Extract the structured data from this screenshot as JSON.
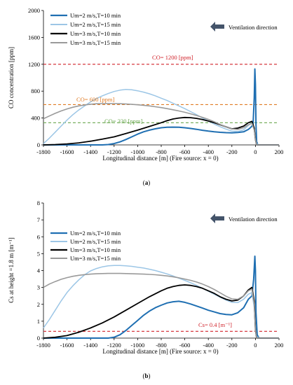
{
  "chart_data": [
    {
      "type": "line",
      "panel_label_open": "(",
      "panel_label_letter": "a",
      "panel_label_close": ")",
      "xlabel": "Longitudinal distance [m] (Fire source: x = 0)",
      "ylabel": "CO concentration [ppm]",
      "xlim": [
        -1800,
        200
      ],
      "ylim": [
        0,
        2000
      ],
      "xticks": [
        -1800,
        -1600,
        -1400,
        -1200,
        -1000,
        -800,
        -600,
        -400,
        -200,
        0,
        200
      ],
      "yticks": [
        0,
        400,
        800,
        1200,
        1600,
        2000
      ],
      "ventilation_label": "Ventilation direction",
      "legend_position": "top-left",
      "series": [
        {
          "name": "Um=2 m/s,T=10 min",
          "color": "#1f6fb2",
          "width": 2,
          "x": [
            -1800,
            -1300,
            -1250,
            -1200,
            -1150,
            -1100,
            -1050,
            -1000,
            -950,
            -900,
            -850,
            -800,
            -750,
            -700,
            -650,
            -600,
            -550,
            -500,
            -450,
            -400,
            -350,
            -300,
            -250,
            -200,
            -150,
            -100,
            -60,
            -40,
            -20,
            -10,
            -5,
            0,
            5,
            10,
            20,
            50,
            200
          ],
          "y": [
            0,
            0,
            5,
            20,
            45,
            80,
            120,
            160,
            195,
            220,
            240,
            255,
            262,
            265,
            262,
            255,
            245,
            232,
            218,
            205,
            195,
            188,
            182,
            180,
            185,
            195,
            230,
            260,
            300,
            700,
            1130,
            900,
            300,
            50,
            0,
            0,
            0
          ]
        },
        {
          "name": "Um=2 m/s,T=15 min",
          "color": "#9cc6e6",
          "width": 1.5,
          "x": [
            -1800,
            -1750,
            -1700,
            -1650,
            -1600,
            -1550,
            -1500,
            -1450,
            -1400,
            -1350,
            -1300,
            -1250,
            -1200,
            -1150,
            -1100,
            -1050,
            -1000,
            -950,
            -900,
            -850,
            -800,
            -750,
            -700,
            -650,
            -600,
            -550,
            -500,
            -450,
            -400,
            -350,
            -300,
            -250,
            -200,
            -150,
            -100,
            -60,
            -30,
            -10,
            0,
            10,
            30,
            200
          ],
          "y": [
            20,
            100,
            190,
            280,
            370,
            450,
            520,
            580,
            640,
            690,
            730,
            765,
            795,
            815,
            825,
            820,
            805,
            785,
            760,
            730,
            695,
            660,
            620,
            580,
            540,
            495,
            450,
            400,
            355,
            310,
            270,
            235,
            205,
            200,
            225,
            290,
            330,
            240,
            100,
            20,
            0,
            0
          ]
        },
        {
          "name": "Um=3 m/s,T=10 min",
          "color": "#000000",
          "width": 1.8,
          "x": [
            -1800,
            -1700,
            -1600,
            -1500,
            -1400,
            -1300,
            -1200,
            -1100,
            -1000,
            -900,
            -800,
            -750,
            -700,
            -650,
            -600,
            -550,
            -500,
            -450,
            -400,
            -350,
            -300,
            -250,
            -200,
            -150,
            -100,
            -60,
            -30,
            -10,
            0,
            10,
            200
          ],
          "y": [
            0,
            5,
            15,
            30,
            55,
            85,
            120,
            170,
            220,
            275,
            330,
            360,
            385,
            400,
            408,
            405,
            395,
            378,
            355,
            330,
            300,
            270,
            240,
            250,
            280,
            330,
            350,
            250,
            80,
            0,
            0
          ]
        },
        {
          "name": "Um=3 m/s,T=15 min",
          "color": "#9a9a9a",
          "width": 1.6,
          "x": [
            -1800,
            -1750,
            -1700,
            -1650,
            -1600,
            -1550,
            -1500,
            -1450,
            -1400,
            -1350,
            -1300,
            -1250,
            -1200,
            -1150,
            -1100,
            -1050,
            -1000,
            -950,
            -900,
            -850,
            -800,
            -750,
            -700,
            -650,
            -600,
            -550,
            -500,
            -450,
            -400,
            -350,
            -300,
            -250,
            -200,
            -150,
            -100,
            -60,
            -30,
            -10,
            0,
            10,
            200
          ],
          "y": [
            390,
            430,
            470,
            505,
            535,
            560,
            580,
            595,
            605,
            612,
            615,
            616,
            615,
            612,
            608,
            603,
            597,
            590,
            580,
            568,
            555,
            540,
            523,
            505,
            485,
            462,
            438,
            410,
            380,
            345,
            305,
            270,
            240,
            230,
            255,
            300,
            320,
            220,
            80,
            0,
            0
          ]
        }
      ],
      "reference_lines": [
        {
          "y": 1200,
          "label": "CO= 1200 [ppm]",
          "color": "#d0222a"
        },
        {
          "y": 600,
          "label": "CO= 600 [ppm]",
          "color": "#e07b24"
        },
        {
          "y": 330,
          "label": "CO= 330 [ppm]",
          "color": "#6aa84f"
        }
      ]
    },
    {
      "type": "line",
      "panel_label_open": "(",
      "panel_label_letter": "b",
      "panel_label_close": ")",
      "xlabel": "Longitudinal distance [m] (Fire source: x = 0)",
      "ylabel": "Cs at height =1.8 m [m⁻¹]",
      "xlim": [
        -1800,
        200
      ],
      "ylim": [
        0,
        8
      ],
      "xticks": [
        -1800,
        -1600,
        -1400,
        -1200,
        -1000,
        -800,
        -600,
        -400,
        -200,
        0,
        200
      ],
      "yticks": [
        0,
        1,
        2,
        3,
        4,
        5,
        6,
        7,
        8
      ],
      "ventilation_label": "Ventilation direction",
      "legend_position": "top-left",
      "series": [
        {
          "name": "Um=2 m/s,T=10 min",
          "color": "#1f6fb2",
          "width": 2,
          "x": [
            -1800,
            -1250,
            -1200,
            -1150,
            -1100,
            -1050,
            -1000,
            -950,
            -900,
            -850,
            -800,
            -750,
            -700,
            -650,
            -600,
            -550,
            -500,
            -450,
            -400,
            -350,
            -300,
            -250,
            -200,
            -150,
            -100,
            -60,
            -30,
            -15,
            -5,
            0,
            5,
            15,
            30,
            200
          ],
          "y": [
            0,
            0,
            0.05,
            0.2,
            0.45,
            0.75,
            1.05,
            1.35,
            1.6,
            1.8,
            1.95,
            2.08,
            2.15,
            2.18,
            2.12,
            2.02,
            1.9,
            1.78,
            1.65,
            1.55,
            1.45,
            1.4,
            1.38,
            1.5,
            1.8,
            2.3,
            2.5,
            3.5,
            4.85,
            4.0,
            1.5,
            0.2,
            0,
            0
          ]
        },
        {
          "name": "Um=2 m/s,T=15 min",
          "color": "#9cc6e6",
          "width": 1.5,
          "x": [
            -1800,
            -1750,
            -1700,
            -1650,
            -1600,
            -1550,
            -1500,
            -1450,
            -1400,
            -1350,
            -1300,
            -1250,
            -1200,
            -1150,
            -1100,
            -1050,
            -1000,
            -950,
            -900,
            -850,
            -800,
            -750,
            -700,
            -650,
            -600,
            -550,
            -500,
            -450,
            -400,
            -350,
            -300,
            -250,
            -200,
            -150,
            -100,
            -60,
            -30,
            -10,
            0,
            10,
            30,
            200
          ],
          "y": [
            0.6,
            1.1,
            1.65,
            2.2,
            2.7,
            3.1,
            3.45,
            3.75,
            3.98,
            4.12,
            4.22,
            4.28,
            4.3,
            4.3,
            4.28,
            4.25,
            4.2,
            4.15,
            4.08,
            4.0,
            3.9,
            3.8,
            3.68,
            3.55,
            3.42,
            3.28,
            3.12,
            2.95,
            2.78,
            2.6,
            2.42,
            2.25,
            2.12,
            2.1,
            2.3,
            2.6,
            2.7,
            1.8,
            0.6,
            0.1,
            0,
            0
          ]
        },
        {
          "name": "Um=3 m/s,T=10 min",
          "color": "#000000",
          "width": 1.8,
          "x": [
            -1800,
            -1700,
            -1600,
            -1500,
            -1400,
            -1300,
            -1200,
            -1100,
            -1000,
            -900,
            -800,
            -750,
            -700,
            -650,
            -600,
            -550,
            -500,
            -450,
            -400,
            -350,
            -300,
            -250,
            -200,
            -150,
            -100,
            -60,
            -30,
            -10,
            0,
            10,
            200
          ],
          "y": [
            0,
            0.05,
            0.15,
            0.35,
            0.6,
            0.9,
            1.25,
            1.65,
            2.05,
            2.45,
            2.8,
            2.95,
            3.05,
            3.12,
            3.15,
            3.12,
            3.05,
            2.95,
            2.8,
            2.65,
            2.45,
            2.3,
            2.2,
            2.25,
            2.5,
            2.85,
            3.0,
            2.2,
            0.5,
            0,
            0
          ]
        },
        {
          "name": "Um=3 m/s,T=15 min",
          "color": "#9a9a9a",
          "width": 1.6,
          "x": [
            -1800,
            -1750,
            -1700,
            -1650,
            -1600,
            -1550,
            -1500,
            -1450,
            -1400,
            -1350,
            -1300,
            -1250,
            -1200,
            -1150,
            -1100,
            -1050,
            -1000,
            -950,
            -900,
            -850,
            -800,
            -750,
            -700,
            -650,
            -600,
            -550,
            -500,
            -450,
            -400,
            -350,
            -300,
            -250,
            -200,
            -150,
            -100,
            -60,
            -30,
            -10,
            0,
            10,
            200
          ],
          "y": [
            3.0,
            3.2,
            3.35,
            3.48,
            3.58,
            3.66,
            3.72,
            3.76,
            3.79,
            3.81,
            3.82,
            3.83,
            3.83,
            3.83,
            3.82,
            3.81,
            3.8,
            3.79,
            3.77,
            3.75,
            3.72,
            3.68,
            3.63,
            3.57,
            3.5,
            3.42,
            3.32,
            3.2,
            3.05,
            2.88,
            2.68,
            2.48,
            2.32,
            2.3,
            2.5,
            2.8,
            2.9,
            2.0,
            0.5,
            0,
            0
          ]
        }
      ],
      "reference_lines": [
        {
          "y": 0.4,
          "label": "Cs= 0.4 [m⁻¹]",
          "color": "#d0222a"
        }
      ]
    }
  ]
}
